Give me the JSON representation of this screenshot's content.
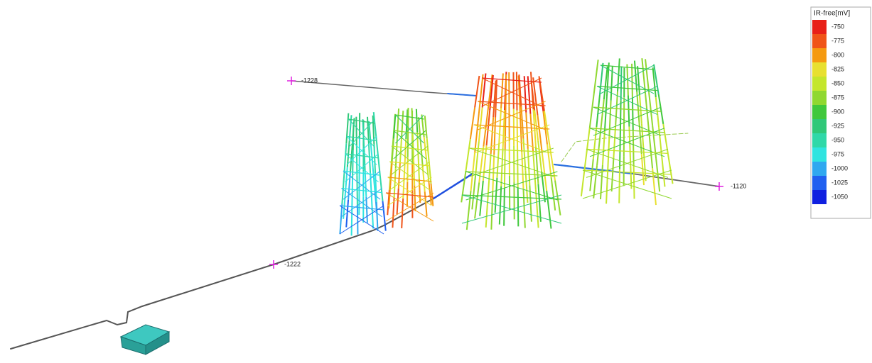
{
  "legend": {
    "title": "IR-free[mV]",
    "entries": [
      {
        "label": "-750",
        "color": "#e82018"
      },
      {
        "label": "-775",
        "color": "#f05418"
      },
      {
        "label": "-800",
        "color": "#f59a10"
      },
      {
        "label": "-825",
        "color": "#e8e030"
      },
      {
        "label": "-850",
        "color": "#c4e62c"
      },
      {
        "label": "-875",
        "color": "#90d830"
      },
      {
        "label": "-900",
        "color": "#40c83c"
      },
      {
        "label": "-925",
        "color": "#30c878"
      },
      {
        "label": "-950",
        "color": "#30d8a8"
      },
      {
        "label": "-975",
        "color": "#30e4e0"
      },
      {
        "label": "-1000",
        "color": "#30a8f0"
      },
      {
        "label": "-1025",
        "color": "#2060f0"
      },
      {
        "label": "-1050",
        "color": "#1020e0"
      }
    ]
  },
  "markers": [
    {
      "label": "-1228"
    },
    {
      "label": "-1120"
    },
    {
      "label": "-1222"
    }
  ]
}
